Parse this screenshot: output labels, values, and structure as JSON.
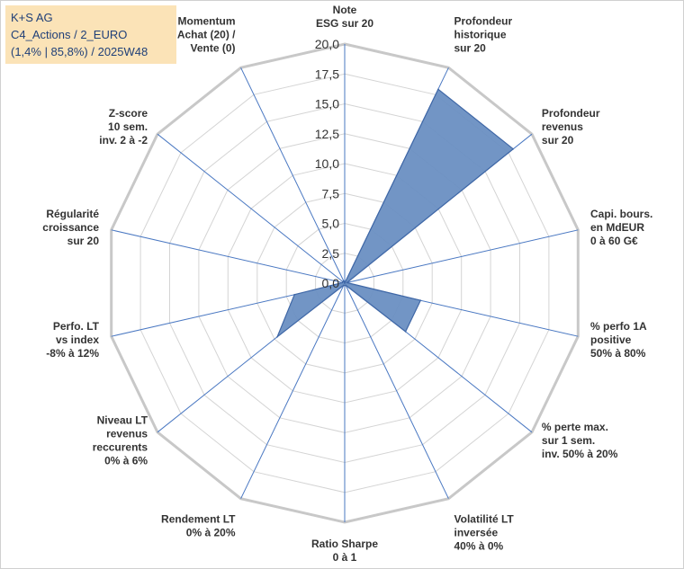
{
  "info_box": {
    "line1": "K+S AG",
    "line2": "C4_Actions / 2_EURO",
    "line3": "(1,4% | 85,8%) / 2025W48"
  },
  "colors": {
    "fill": "#6a8fc2",
    "stroke": "#3f67a6",
    "grid": "#d4d4d4",
    "spoke": "#4a78c2",
    "info_bg": "#fbe3b7",
    "info_text": "#1f3f78"
  },
  "chart_data": {
    "type": "radar",
    "scale_max": 20,
    "ticks": [
      "0,0",
      "2,5",
      "5,0",
      "7,5",
      "10,0",
      "12,5",
      "15,0",
      "17,5",
      "20,0"
    ],
    "axes": [
      [
        "Note",
        "ESG sur 20"
      ],
      [
        "Profondeur",
        "historique",
        "sur 20"
      ],
      [
        "Profondeur",
        "revenus",
        "sur 20"
      ],
      [
        "Capi. bours.",
        "en MdEUR",
        "0 à 60 G€"
      ],
      [
        "% perfo 1A",
        "positive",
        "50% à 80%"
      ],
      [
        "% perte max.",
        "sur 1 sem.",
        "inv. 50% à 20%"
      ],
      [
        "Volatilité LT",
        "inversée",
        "40% à 0%"
      ],
      [
        "Ratio Sharpe",
        "0 à 1"
      ],
      [
        "Rendement LT",
        "0% à 20%"
      ],
      [
        "Niveau LT",
        "revenus",
        "reccurents",
        "0% à 6%"
      ],
      [
        "Perfo. LT",
        "vs index",
        "-8% à 12%"
      ],
      [
        "Régularité",
        "croissance",
        "sur 20"
      ],
      [
        "Z-score",
        "10 sem.",
        "inv. 2 à -2"
      ],
      [
        "Momentum",
        "Achat (20) /",
        "Vente (0)"
      ]
    ],
    "values": [
      0,
      18,
      18,
      0.2,
      6.5,
      6.5,
      0.2,
      0.2,
      0.2,
      7.2,
      4.3,
      0.2,
      0.2,
      0.2
    ]
  }
}
